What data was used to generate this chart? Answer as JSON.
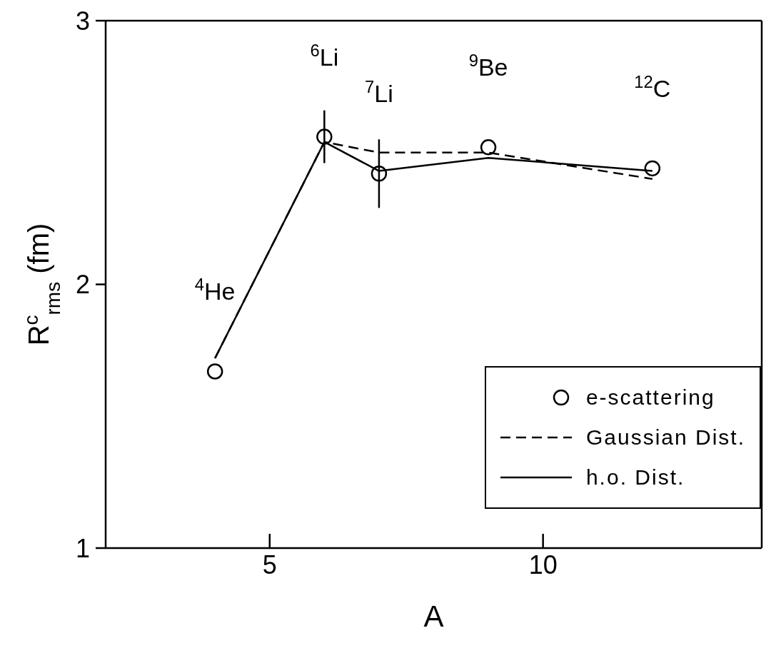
{
  "chart_data": {
    "type": "line",
    "xlabel": "A",
    "ylabel": "R$^{c}$$_{rms}$ (fm)",
    "xlim": [
      2,
      14
    ],
    "xticks": [
      5,
      10
    ],
    "ylim": [
      1,
      3
    ],
    "yticks": [
      1,
      2,
      3
    ],
    "grid": false,
    "legend": "bottom right",
    "series": [
      {
        "name": "e-scattering",
        "type": "scatter",
        "marker": "circle",
        "color": "#000000",
        "x": [
          4,
          6,
          7,
          9,
          12
        ],
        "values": [
          1.67,
          2.56,
          2.42,
          2.52,
          2.44
        ],
        "errors": [
          null,
          0.1,
          0.13,
          null,
          null
        ]
      },
      {
        "name": "Gaussian Dist.",
        "type": "line",
        "line_style": "dashed",
        "color": "#000000",
        "x": [
          4,
          6,
          7,
          9,
          12
        ],
        "values": [
          1.72,
          2.54,
          2.5,
          2.5,
          2.4
        ]
      },
      {
        "name": "h.o. Dist.",
        "type": "line",
        "line_style": "solid",
        "color": "#000000",
        "x": [
          4,
          6,
          7,
          9,
          12
        ],
        "values": [
          1.72,
          2.54,
          2.43,
          2.48,
          2.43
        ]
      }
    ],
    "annotations": [
      {
        "text": "$^{4}$He",
        "x": 4,
        "y": 1.67
      },
      {
        "text": "$^{6}$Li",
        "x": 6,
        "y": 2.56
      },
      {
        "text": "$^{7}$Li",
        "x": 7,
        "y": 2.42
      },
      {
        "text": "$^{9}$Be",
        "x": 9,
        "y": 2.52
      },
      {
        "text": "$^{12}$C",
        "x": 12,
        "y": 2.44
      }
    ]
  }
}
